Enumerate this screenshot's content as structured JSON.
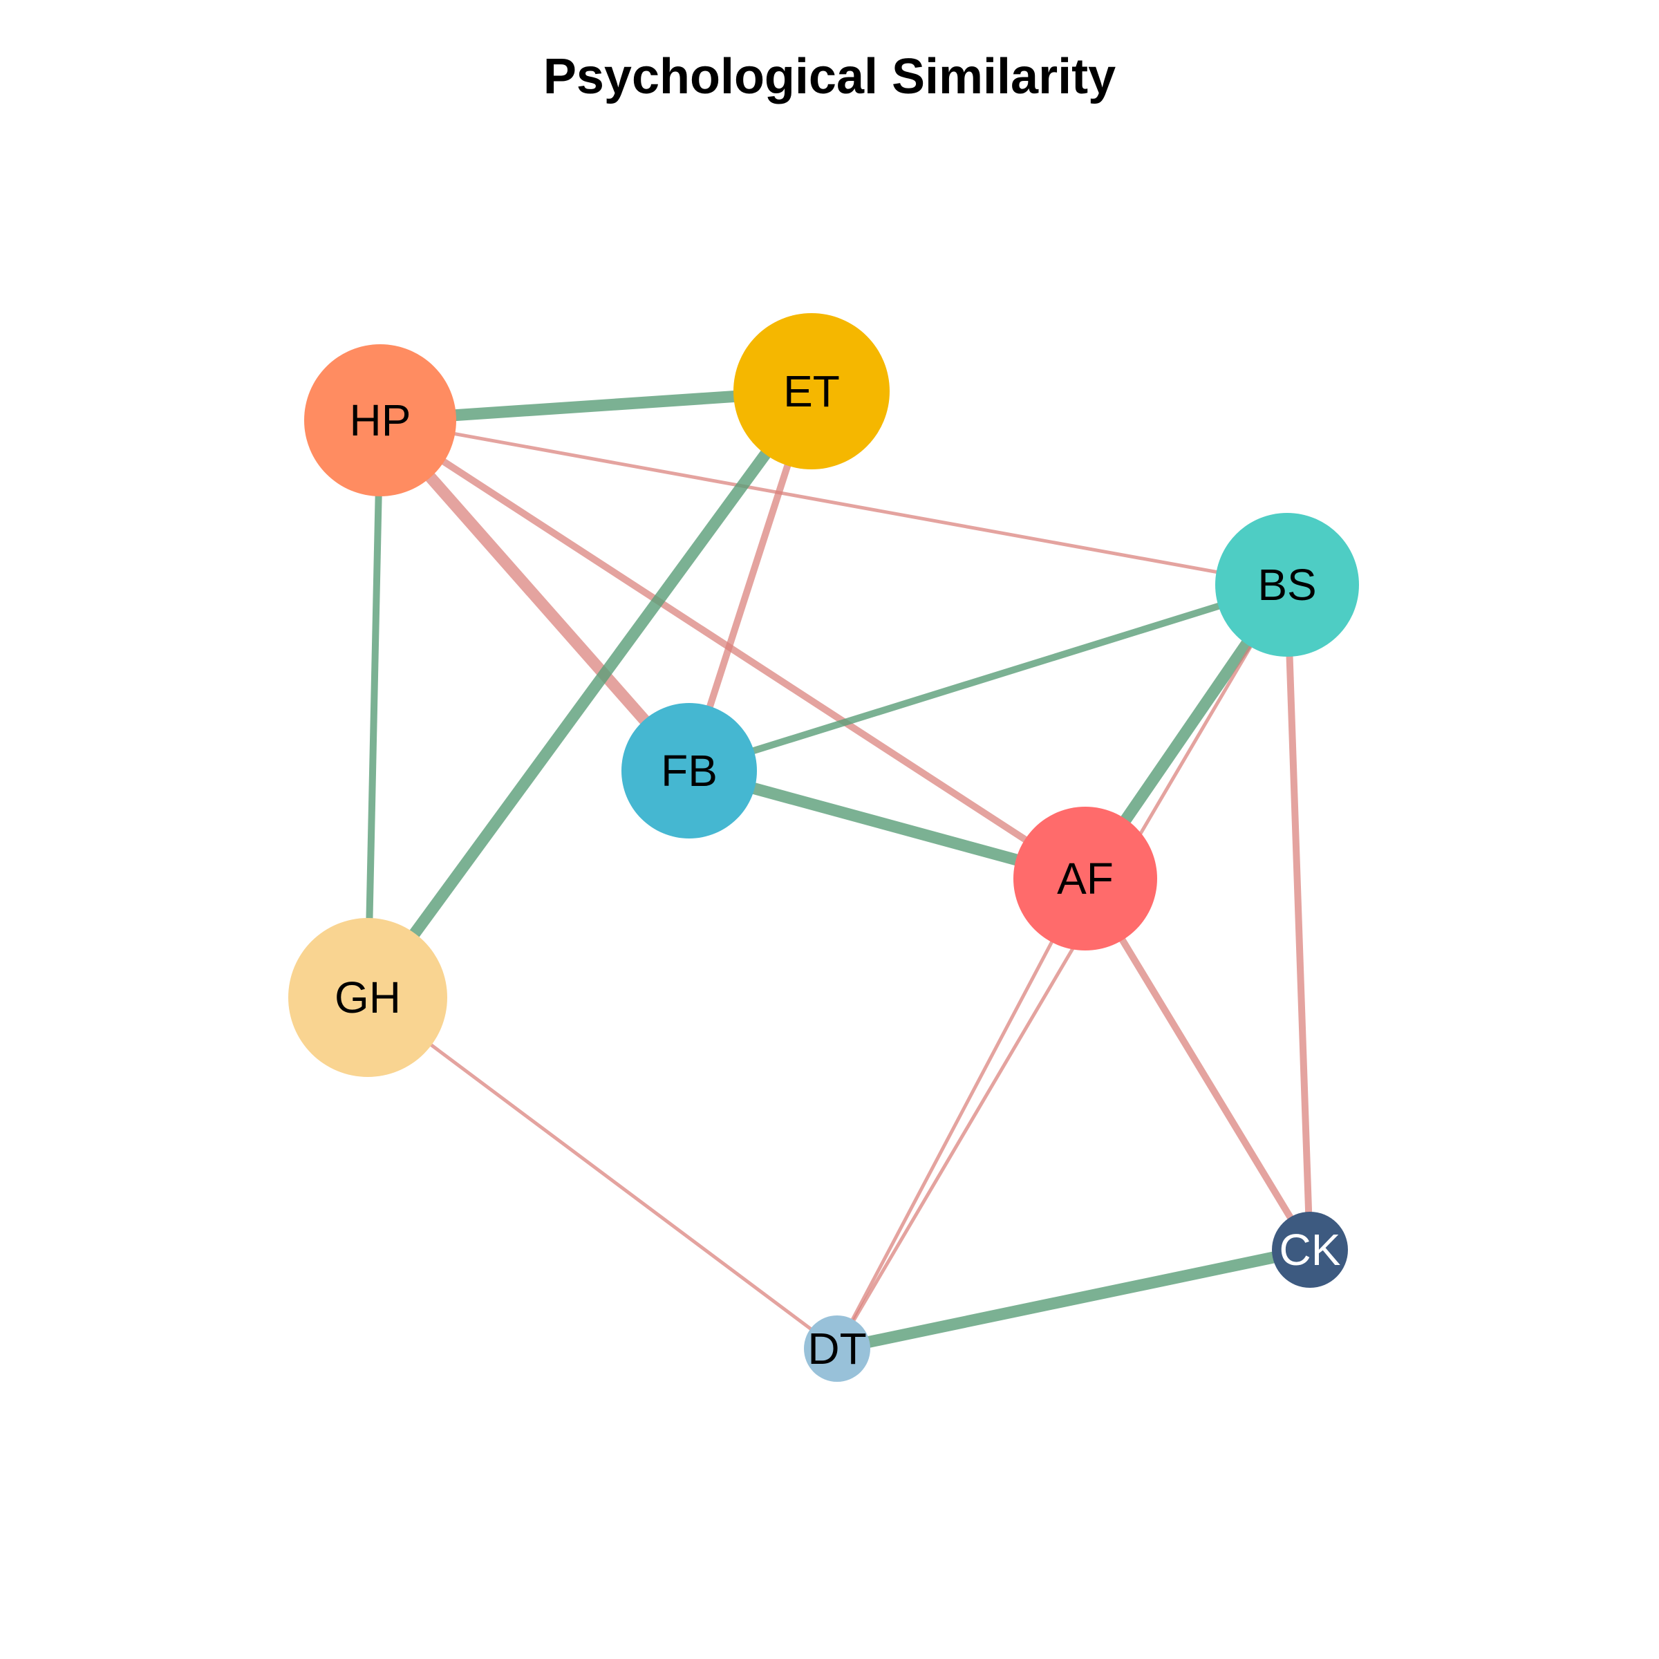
{
  "title": "Psychological Similarity",
  "colors": {
    "edge_similar": "#5a9e78",
    "edge_dissimilar": "#d9807a"
  },
  "nodes": [
    {
      "id": "HP",
      "label": "HP",
      "color": "#ff8c61",
      "text_color": "#000000"
    },
    {
      "id": "ET",
      "label": "ET",
      "color": "#f5b700",
      "text_color": "#000000"
    },
    {
      "id": "BS",
      "label": "BS",
      "color": "#4ecdc4",
      "text_color": "#000000"
    },
    {
      "id": "FB",
      "label": "FB",
      "color": "#45b7d1",
      "text_color": "#000000"
    },
    {
      "id": "AF",
      "label": "AF",
      "color": "#ff6b6b",
      "text_color": "#000000"
    },
    {
      "id": "GH",
      "label": "GH",
      "color": "#f9d491",
      "text_color": "#000000"
    },
    {
      "id": "CK",
      "label": "CK",
      "color": "#3d5a80",
      "text_color": "#ffffff"
    },
    {
      "id": "DT",
      "label": "DT",
      "color": "#98c1d9",
      "text_color": "#000000"
    }
  ],
  "edges": [
    {
      "source": "HP",
      "target": "ET",
      "type": "similar",
      "strength": "strong"
    },
    {
      "source": "HP",
      "target": "GH",
      "type": "similar",
      "strength": "medium"
    },
    {
      "source": "HP",
      "target": "FB",
      "type": "dissimilar",
      "strength": "strong"
    },
    {
      "source": "HP",
      "target": "AF",
      "type": "dissimilar",
      "strength": "medium"
    },
    {
      "source": "HP",
      "target": "BS",
      "type": "dissimilar",
      "strength": "weak"
    },
    {
      "source": "ET",
      "target": "GH",
      "type": "similar",
      "strength": "strong"
    },
    {
      "source": "ET",
      "target": "FB",
      "type": "dissimilar",
      "strength": "medium"
    },
    {
      "source": "BS",
      "target": "FB",
      "type": "similar",
      "strength": "medium"
    },
    {
      "source": "BS",
      "target": "AF",
      "type": "similar",
      "strength": "strong"
    },
    {
      "source": "BS",
      "target": "DT",
      "type": "dissimilar",
      "strength": "weak"
    },
    {
      "source": "BS",
      "target": "CK",
      "type": "dissimilar",
      "strength": "medium"
    },
    {
      "source": "FB",
      "target": "AF",
      "type": "similar",
      "strength": "strong"
    },
    {
      "source": "AF",
      "target": "CK",
      "type": "dissimilar",
      "strength": "medium"
    },
    {
      "source": "AF",
      "target": "DT",
      "type": "dissimilar",
      "strength": "weak"
    },
    {
      "source": "GH",
      "target": "DT",
      "type": "dissimilar",
      "strength": "weak"
    },
    {
      "source": "DT",
      "target": "CK",
      "type": "similar",
      "strength": "strong"
    }
  ]
}
